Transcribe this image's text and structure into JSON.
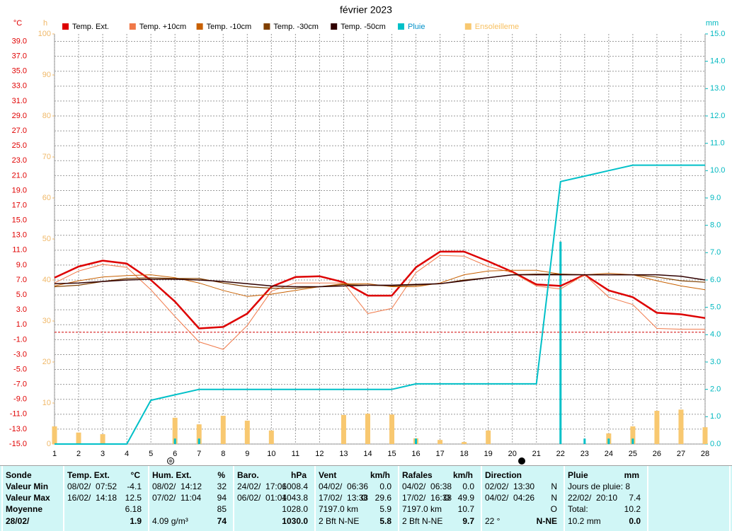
{
  "chart_data": {
    "type": "line",
    "title": "février 2023",
    "y_unit": "°C",
    "y3_unit": "h",
    "y2_unit": "mm",
    "x": [
      1,
      2,
      3,
      4,
      5,
      6,
      7,
      8,
      9,
      10,
      11,
      12,
      13,
      14,
      15,
      16,
      17,
      18,
      19,
      20,
      21,
      22,
      23,
      24,
      25,
      26,
      27,
      28
    ],
    "xlim": [
      1,
      28
    ],
    "ylim": [
      -15,
      40
    ],
    "yticks": [
      {
        "value": -15,
        "label": "-15.0"
      },
      {
        "value": -13,
        "label": "-13.0"
      },
      {
        "value": -11,
        "label": "-11.0"
      },
      {
        "value": -9,
        "label": "-9.0"
      },
      {
        "value": -7,
        "label": "-7.0"
      },
      {
        "value": -5,
        "label": "-5.0"
      },
      {
        "value": -3,
        "label": "-3.0"
      },
      {
        "value": -1,
        "label": "-1.0"
      },
      {
        "value": 1,
        "label": "1.0"
      },
      {
        "value": 3,
        "label": "3.0"
      },
      {
        "value": 5,
        "label": "5.0"
      },
      {
        "value": 7,
        "label": "7.0"
      },
      {
        "value": 9,
        "label": "9.0"
      },
      {
        "value": 11,
        "label": "11.0"
      },
      {
        "value": 13,
        "label": "13.0"
      },
      {
        "value": 15,
        "label": "15.0"
      },
      {
        "value": 17,
        "label": "17.0"
      },
      {
        "value": 19,
        "label": "19.0"
      },
      {
        "value": 21,
        "label": "21.0"
      },
      {
        "value": 23,
        "label": "23.0"
      },
      {
        "value": 25,
        "label": "25.0"
      },
      {
        "value": 27,
        "label": "27.0"
      },
      {
        "value": 29,
        "label": "29.0"
      },
      {
        "value": 31,
        "label": "31.0"
      },
      {
        "value": 33,
        "label": "33.0"
      },
      {
        "value": 35,
        "label": "35.0"
      },
      {
        "value": 37,
        "label": "37.0"
      },
      {
        "value": 39,
        "label": "39.0"
      }
    ],
    "y2lim": [
      0,
      15
    ],
    "y2ticks": [
      {
        "value": 0,
        "label": "0.0"
      },
      {
        "value": 1,
        "label": "1.0"
      },
      {
        "value": 2,
        "label": "2.0"
      },
      {
        "value": 3,
        "label": "3.0"
      },
      {
        "value": 4,
        "label": "4.0"
      },
      {
        "value": 5,
        "label": "5.0"
      },
      {
        "value": 6,
        "label": "6.0"
      },
      {
        "value": 7,
        "label": "7.0"
      },
      {
        "value": 8,
        "label": "8.0"
      },
      {
        "value": 9,
        "label": "9.0"
      },
      {
        "value": 10,
        "label": "10.0"
      },
      {
        "value": 11,
        "label": "11.0"
      },
      {
        "value": 12,
        "label": "12.0"
      },
      {
        "value": 13,
        "label": "13.0"
      },
      {
        "value": 14,
        "label": "14.0"
      },
      {
        "value": 15,
        "label": "15.0"
      }
    ],
    "y3lim": [
      0,
      100
    ],
    "y3ticks": [
      0,
      10,
      20,
      30,
      40,
      50,
      60,
      70,
      80,
      90,
      100
    ],
    "y_color": "#e00000",
    "y2_color": "#00b8c0",
    "y3_color": "#f0b868",
    "grid": true,
    "reference_line": {
      "value": 0,
      "color": "#d00000"
    },
    "series": [
      {
        "name": "Temp. Ext.",
        "color": "#dd0000",
        "width": 2.5,
        "axis": "y",
        "values": [
          7.3,
          8.8,
          9.6,
          9.2,
          7.0,
          4.1,
          0.5,
          0.7,
          2.5,
          6.1,
          7.4,
          7.5,
          6.7,
          4.9,
          4.9,
          8.7,
          10.8,
          10.8,
          9.5,
          8.1,
          6.4,
          6.2,
          7.7,
          5.6,
          4.7,
          2.6,
          2.4,
          1.9
        ]
      },
      {
        "name": "Temp. +10cm",
        "color": "#f07848",
        "width": 1,
        "axis": "y",
        "values": [
          6.6,
          8.2,
          9.1,
          8.7,
          5.7,
          2.1,
          -1.3,
          -2.3,
          0.9,
          5.5,
          6.6,
          6.6,
          6.6,
          2.5,
          3.2,
          8.0,
          10.3,
          10.2,
          8.8,
          8.0,
          6.2,
          5.8,
          7.7,
          4.7,
          3.7,
          0.5,
          0.4,
          0.4
        ]
      },
      {
        "name": "Temp. -10cm",
        "color": "#c86000",
        "width": 1,
        "axis": "y",
        "values": [
          6.2,
          6.9,
          7.4,
          7.6,
          7.7,
          7.3,
          6.6,
          5.6,
          4.8,
          5.1,
          5.6,
          6.1,
          6.5,
          6.5,
          6.1,
          6.1,
          6.6,
          7.7,
          8.2,
          8.3,
          8.3,
          7.8,
          7.7,
          7.9,
          7.7,
          6.9,
          6.2,
          5.7
        ]
      },
      {
        "name": "Temp. -30cm",
        "color": "#804000",
        "width": 1.2,
        "axis": "y",
        "values": [
          6.1,
          6.3,
          6.8,
          7.2,
          7.3,
          7.2,
          7.2,
          6.6,
          6.1,
          5.9,
          5.9,
          6.1,
          6.4,
          6.3,
          6.2,
          6.3,
          6.5,
          7.0,
          7.3,
          7.7,
          7.8,
          7.8,
          7.7,
          7.7,
          7.7,
          7.4,
          6.9,
          6.7
        ]
      },
      {
        "name": "Temp. -50cm",
        "color": "#300000",
        "width": 1.5,
        "axis": "y",
        "values": [
          6.5,
          6.6,
          6.8,
          7.0,
          7.1,
          7.1,
          7.0,
          6.8,
          6.5,
          6.2,
          6.1,
          6.1,
          6.2,
          6.3,
          6.3,
          6.4,
          6.5,
          6.9,
          7.3,
          7.7,
          7.7,
          7.7,
          7.7,
          7.7,
          7.7,
          7.7,
          7.5,
          7.0
        ]
      },
      {
        "name": "Pluie",
        "color": "#00c0c8",
        "width": 2,
        "axis": "y2",
        "legend_text_color": "#0090c8",
        "values": [
          0,
          0,
          0,
          0,
          1.6,
          1.8,
          2.0,
          2.0,
          2.0,
          2.0,
          2.0,
          2.0,
          2.0,
          2.0,
          2.0,
          2.2,
          2.2,
          2.2,
          2.2,
          2.2,
          2.2,
          9.6,
          9.8,
          10.0,
          10.2,
          10.2,
          10.2,
          10.2
        ]
      },
      {
        "name": "Ensoleilleme",
        "color": "#f8c870",
        "axis": "y3",
        "kind": "bar",
        "legend_text_color": "#f8c060",
        "values": [
          4.3,
          2.8,
          2.4,
          0,
          0,
          6.4,
          4.8,
          6.9,
          5.7,
          3.3,
          0,
          0,
          7.1,
          7.4,
          7.2,
          1.4,
          1.0,
          0.5,
          3.3,
          0,
          0,
          0,
          0,
          2.6,
          4.3,
          8.1,
          8.4,
          4.1
        ]
      }
    ],
    "rain_bars": {
      "color": "#00c0c8",
      "axis": "y2",
      "values": [
        0,
        0,
        0,
        0,
        0,
        0.2,
        0.2,
        0,
        0,
        0,
        0,
        0,
        0,
        0,
        0,
        0.2,
        0,
        0,
        0,
        0,
        0,
        7.4,
        0.2,
        0.2,
        0.2,
        0,
        0,
        0
      ]
    }
  },
  "table": {
    "labels": [
      "Sonde",
      "Valeur Min",
      "Valeur Max",
      "Moyenne",
      "28/02/"
    ],
    "columns": [
      {
        "header": "Temp. Ext.",
        "unit": "°C",
        "rows": [
          {
            "left": "08/02/  07:52",
            "right": "-4.1"
          },
          {
            "left": "16/02/  14:18",
            "right": "12.5"
          },
          {
            "right": "6.18"
          },
          {
            "right": "1.9"
          }
        ]
      },
      {
        "header": "Hum. Ext.",
        "unit": "%",
        "rows": [
          {
            "left": "08/02/  14:12",
            "right": "32"
          },
          {
            "left": "07/02/  11:04",
            "right": "94"
          },
          {
            "right": "85"
          },
          {
            "left": "4.09 g/m³",
            "right": "74"
          }
        ]
      },
      {
        "header": "Baro.",
        "unit": "hPa",
        "rows": [
          {
            "left": "24/02/  17:06",
            "right": "1008.4"
          },
          {
            "left": "06/02/  01:04",
            "right": "1043.8"
          },
          {
            "right": "1028.0"
          },
          {
            "right": "1030.0"
          }
        ]
      },
      {
        "header": "Vent",
        "unit": "km/h",
        "rows": [
          {
            "left": "04/02/  06:36",
            "right": "0.0"
          },
          {
            "left": "17/02/  13:38",
            "middle": "O",
            "right": "29.6"
          },
          {
            "left": "7197.0 km",
            "right": "5.9"
          },
          {
            "left": "2 Bft N-NE",
            "right": "5.8"
          }
        ]
      },
      {
        "header": "Rafales",
        "unit": "km/h",
        "rows": [
          {
            "left": "04/02/  06:38",
            "right": "0.0"
          },
          {
            "left": "17/02/  16:38",
            "middle": "O",
            "right": "49.9"
          },
          {
            "left": "7197.0 km",
            "right": "10.7"
          },
          {
            "left": "2 Bft N-NE",
            "right": "9.7"
          }
        ]
      },
      {
        "header": "Direction",
        "rows": [
          {
            "left": "02/02/  13:30",
            "right": "N"
          },
          {
            "left": "04/02/  04:26",
            "right": "N"
          },
          {
            "right": "O"
          },
          {
            "left": "22 °",
            "right": "N-NE"
          }
        ]
      },
      {
        "header": "Pluie",
        "unit": "mm",
        "rows": [
          {
            "left": "Jours de pluie: 8"
          },
          {
            "left": "22/02/  20:10",
            "right": "7.4"
          },
          {
            "left": "Total:",
            "right": "10.2"
          },
          {
            "left": "10.2 mm",
            "right": "0.0"
          }
        ]
      }
    ]
  }
}
